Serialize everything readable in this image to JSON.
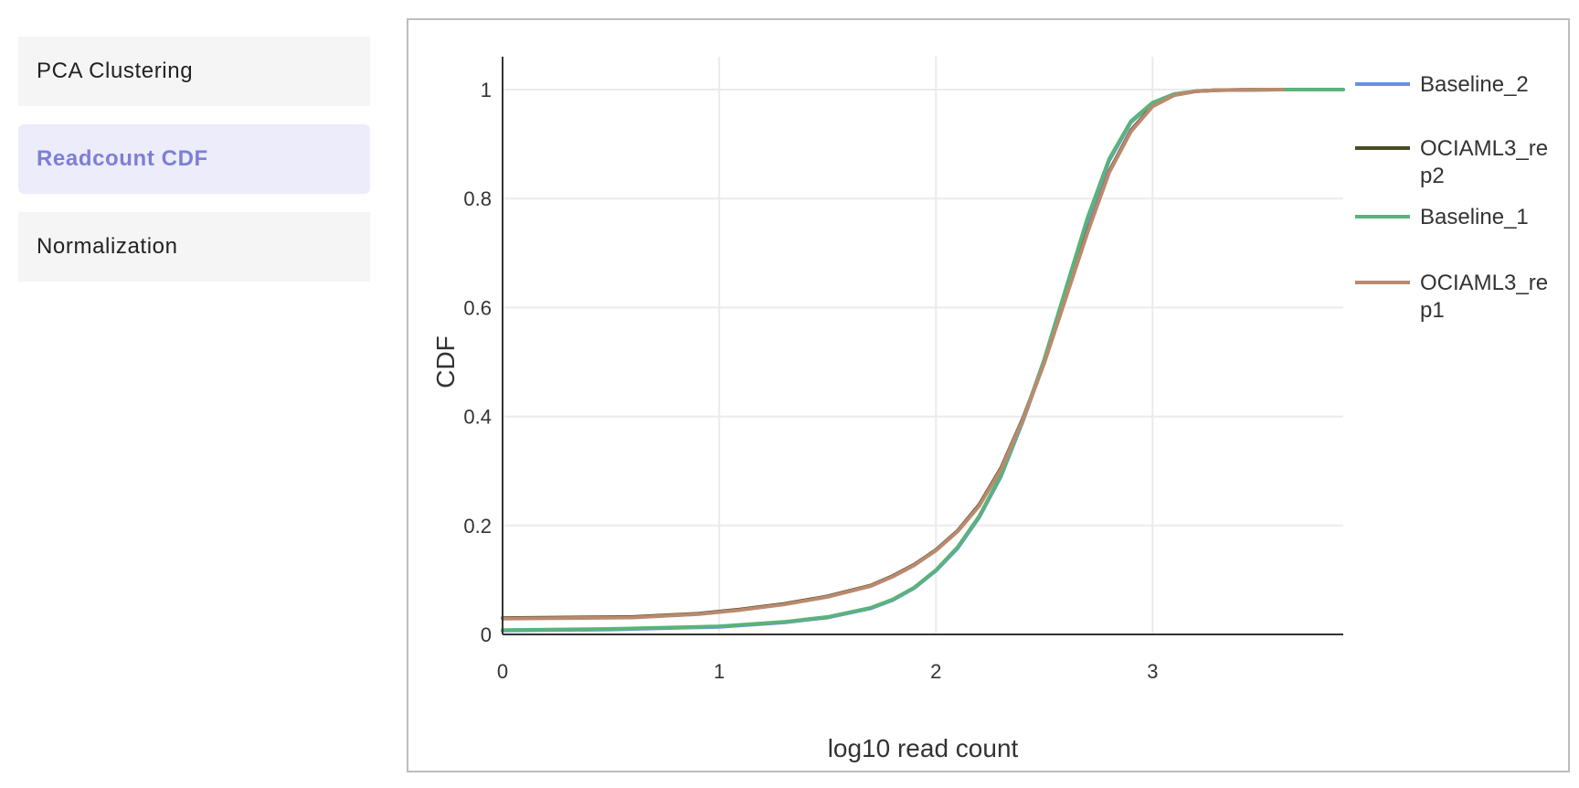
{
  "sidebar": {
    "items": [
      {
        "label": "PCA Clustering",
        "active": false
      },
      {
        "label": "Readcount CDF",
        "active": true
      },
      {
        "label": "Normalization",
        "active": false
      }
    ]
  },
  "chart_data": {
    "type": "line",
    "title": "",
    "xlabel": "log10 read count",
    "ylabel": "CDF",
    "xlim": [
      0,
      3.88
    ],
    "ylim": [
      0,
      1
    ],
    "x_ticks": [
      0,
      1,
      2,
      3
    ],
    "y_ticks": [
      0,
      0.2,
      0.4,
      0.6,
      0.8,
      1
    ],
    "y_tick_labels": [
      "0",
      "0.2",
      "0.4",
      "0.6",
      "0.8",
      "1"
    ],
    "grid": true,
    "legend_position": "right",
    "series": [
      {
        "name": "Baseline_2",
        "color": "#6b8fe6",
        "x": [
          0,
          0.5,
          1.0,
          1.3,
          1.5,
          1.7,
          1.8,
          1.9,
          2.0,
          2.1,
          2.2,
          2.3,
          2.4,
          2.5,
          2.6,
          2.7,
          2.8,
          2.9,
          3.0,
          3.1,
          3.2,
          3.3,
          3.5,
          3.88
        ],
        "y": [
          0.007,
          0.009,
          0.014,
          0.022,
          0.031,
          0.048,
          0.063,
          0.085,
          0.117,
          0.158,
          0.215,
          0.29,
          0.39,
          0.5,
          0.63,
          0.76,
          0.87,
          0.94,
          0.975,
          0.992,
          0.997,
          0.999,
          1.0,
          1.0
        ]
      },
      {
        "name": "OCIAML3_rep2",
        "color": "#4a4a25",
        "x": [
          0,
          0.6,
          0.9,
          1.1,
          1.3,
          1.5,
          1.7,
          1.8,
          1.9,
          2.0,
          2.1,
          2.2,
          2.3,
          2.4,
          2.5,
          2.6,
          2.7,
          2.8,
          2.9,
          3.0,
          3.1,
          3.2,
          3.3,
          3.6
        ],
        "y": [
          0.03,
          0.032,
          0.038,
          0.046,
          0.056,
          0.07,
          0.09,
          0.107,
          0.128,
          0.155,
          0.19,
          0.238,
          0.305,
          0.395,
          0.5,
          0.62,
          0.74,
          0.85,
          0.925,
          0.97,
          0.99,
          0.997,
          0.999,
          1.0
        ]
      },
      {
        "name": "Baseline_1",
        "color": "#5ab37a",
        "x": [
          0,
          0.5,
          1.0,
          1.3,
          1.5,
          1.7,
          1.8,
          1.9,
          2.0,
          2.1,
          2.2,
          2.3,
          2.4,
          2.5,
          2.6,
          2.7,
          2.8,
          2.9,
          3.0,
          3.1,
          3.2,
          3.3,
          3.5,
          3.88
        ],
        "y": [
          0.008,
          0.01,
          0.015,
          0.023,
          0.032,
          0.049,
          0.064,
          0.086,
          0.118,
          0.16,
          0.217,
          0.292,
          0.392,
          0.505,
          0.635,
          0.765,
          0.873,
          0.942,
          0.976,
          0.992,
          0.997,
          0.999,
          1.0,
          1.0
        ]
      },
      {
        "name": "OCIAML3_rep1",
        "color": "#b98a6e",
        "x": [
          0,
          0.6,
          0.9,
          1.1,
          1.3,
          1.5,
          1.7,
          1.8,
          1.9,
          2.0,
          2.1,
          2.2,
          2.3,
          2.4,
          2.5,
          2.6,
          2.7,
          2.8,
          2.9,
          3.0,
          3.1,
          3.2,
          3.3,
          3.6
        ],
        "y": [
          0.029,
          0.031,
          0.037,
          0.045,
          0.055,
          0.069,
          0.089,
          0.106,
          0.127,
          0.154,
          0.189,
          0.236,
          0.303,
          0.393,
          0.498,
          0.618,
          0.738,
          0.848,
          0.923,
          0.969,
          0.99,
          0.997,
          0.999,
          1.0
        ]
      }
    ]
  }
}
